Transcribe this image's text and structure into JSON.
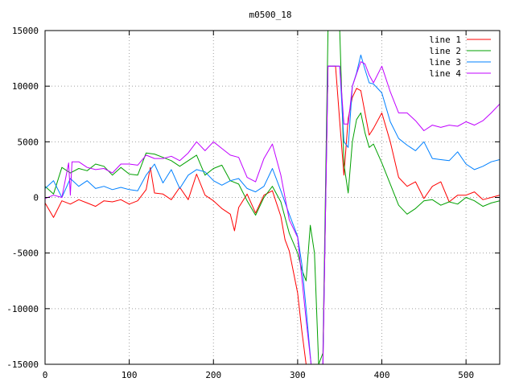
{
  "chart_data": {
    "type": "line",
    "title": "m0500_18",
    "xlabel": "",
    "ylabel": "",
    "xlim": [
      0,
      540
    ],
    "ylim": [
      -15000,
      15000
    ],
    "xticks": [
      0,
      100,
      200,
      300,
      400,
      500
    ],
    "yticks": [
      -15000,
      -10000,
      -5000,
      0,
      5000,
      10000,
      15000
    ],
    "grid": true,
    "legend_position": "top-right",
    "series": [
      {
        "name": "line 1",
        "color": "#ff0000",
        "x": [
          0,
          10,
          20,
          30,
          40,
          50,
          60,
          70,
          80,
          90,
          100,
          110,
          120,
          125,
          130,
          140,
          150,
          160,
          170,
          180,
          190,
          200,
          210,
          220,
          225,
          230,
          240,
          250,
          260,
          270,
          280,
          285,
          290,
          300,
          305,
          310,
          316,
          320,
          330,
          336,
          340,
          345,
          350,
          355,
          360,
          365,
          370,
          375,
          380,
          385,
          390,
          400,
          410,
          420,
          430,
          440,
          450,
          460,
          470,
          480,
          490,
          500,
          510,
          520,
          530,
          540
        ],
        "y": [
          -500,
          -1800,
          -300,
          -600,
          -200,
          -500,
          -800,
          -300,
          -400,
          -200,
          -600,
          -300,
          700,
          2700,
          400,
          300,
          -200,
          900,
          -200,
          2100,
          200,
          -300,
          -1000,
          -1500,
          -3000,
          -900,
          300,
          -1400,
          200,
          600,
          -1700,
          -3800,
          -4800,
          -8600,
          -12000,
          -15000,
          -15000,
          -15000,
          -15000,
          11800,
          11800,
          11800,
          6800,
          2000,
          7100,
          9000,
          9800,
          9600,
          7600,
          5600,
          6200,
          7600,
          5000,
          1800,
          1000,
          1400,
          -100,
          1000,
          1400,
          -400,
          200,
          200,
          500,
          -200,
          0,
          200
        ]
      },
      {
        "name": "line 2",
        "color": "#00a000",
        "x": [
          0,
          10,
          20,
          30,
          40,
          50,
          60,
          70,
          80,
          90,
          100,
          110,
          120,
          130,
          140,
          150,
          160,
          170,
          180,
          190,
          200,
          210,
          220,
          230,
          240,
          250,
          260,
          270,
          280,
          290,
          300,
          305,
          310,
          315,
          320,
          325,
          330,
          336,
          345,
          350,
          355,
          360,
          365,
          370,
          375,
          380,
          385,
          390,
          400,
          410,
          420,
          430,
          440,
          450,
          460,
          470,
          480,
          490,
          500,
          510,
          520,
          530,
          540
        ],
        "y": [
          1000,
          300,
          2700,
          2200,
          2600,
          2400,
          3000,
          2800,
          2000,
          2700,
          2100,
          2000,
          4000,
          3900,
          3600,
          3300,
          2800,
          3300,
          3800,
          2000,
          2600,
          2900,
          1500,
          1200,
          -300,
          -1600,
          0,
          1000,
          -400,
          -3200,
          -5000,
          -6500,
          -7500,
          -2500,
          -5000,
          -15000,
          -14000,
          15000,
          15000,
          15000,
          3000,
          400,
          5000,
          7000,
          7600,
          5800,
          4500,
          4800,
          3100,
          1200,
          -700,
          -1500,
          -1000,
          -300,
          -200,
          -700,
          -400,
          -600,
          0,
          -300,
          -800,
          -500,
          -300
        ]
      },
      {
        "name": "line 3",
        "color": "#0080ff",
        "x": [
          0,
          10,
          20,
          30,
          40,
          50,
          60,
          70,
          80,
          90,
          100,
          110,
          120,
          130,
          140,
          150,
          160,
          170,
          180,
          190,
          200,
          210,
          220,
          230,
          240,
          250,
          260,
          270,
          280,
          290,
          300,
          305,
          310,
          316,
          320,
          330,
          336,
          345,
          350,
          355,
          360,
          365,
          370,
          375,
          380,
          385,
          390,
          400,
          410,
          420,
          430,
          440,
          450,
          460,
          470,
          480,
          490,
          500,
          510,
          520,
          530,
          540
        ],
        "y": [
          800,
          1500,
          0,
          1700,
          1000,
          1500,
          800,
          1000,
          700,
          900,
          700,
          600,
          2000,
          3000,
          1300,
          2500,
          800,
          2000,
          2500,
          2300,
          1500,
          1100,
          1500,
          1700,
          800,
          500,
          1000,
          2600,
          600,
          -1500,
          -3500,
          -6000,
          -10000,
          -15000,
          -15000,
          -15000,
          11800,
          11800,
          11800,
          5000,
          4500,
          10000,
          11200,
          12800,
          11500,
          10300,
          10200,
          9400,
          6800,
          5300,
          4700,
          4200,
          5000,
          3500,
          3400,
          3300,
          4100,
          3000,
          2500,
          2800,
          3200,
          3400
        ]
      },
      {
        "name": "line 4",
        "color": "#c000ff",
        "x": [
          0,
          10,
          20,
          28,
          30,
          32,
          40,
          50,
          60,
          70,
          80,
          90,
          100,
          110,
          120,
          130,
          140,
          150,
          160,
          170,
          180,
          190,
          200,
          210,
          220,
          230,
          240,
          250,
          260,
          270,
          280,
          290,
          300,
          310,
          316,
          320,
          330,
          336,
          345,
          350,
          355,
          360,
          365,
          370,
          375,
          380,
          385,
          390,
          400,
          410,
          420,
          430,
          440,
          450,
          460,
          470,
          480,
          490,
          500,
          510,
          520,
          530,
          540
        ],
        "y": [
          -100,
          200,
          0,
          3100,
          200,
          3200,
          3200,
          2700,
          2500,
          2600,
          2200,
          3000,
          3000,
          2900,
          3800,
          3500,
          3500,
          3700,
          3300,
          4000,
          5000,
          4200,
          5000,
          4400,
          3800,
          3600,
          1800,
          1400,
          3500,
          4800,
          2000,
          -2000,
          -3600,
          -11000,
          -15000,
          -15000,
          -15000,
          11800,
          11800,
          11800,
          6600,
          6600,
          10000,
          11100,
          12200,
          12000,
          11000,
          10300,
          11800,
          9500,
          7600,
          7600,
          6900,
          6000,
          6500,
          6300,
          6500,
          6400,
          6800,
          6500,
          6900,
          7600,
          8400
        ]
      }
    ]
  }
}
